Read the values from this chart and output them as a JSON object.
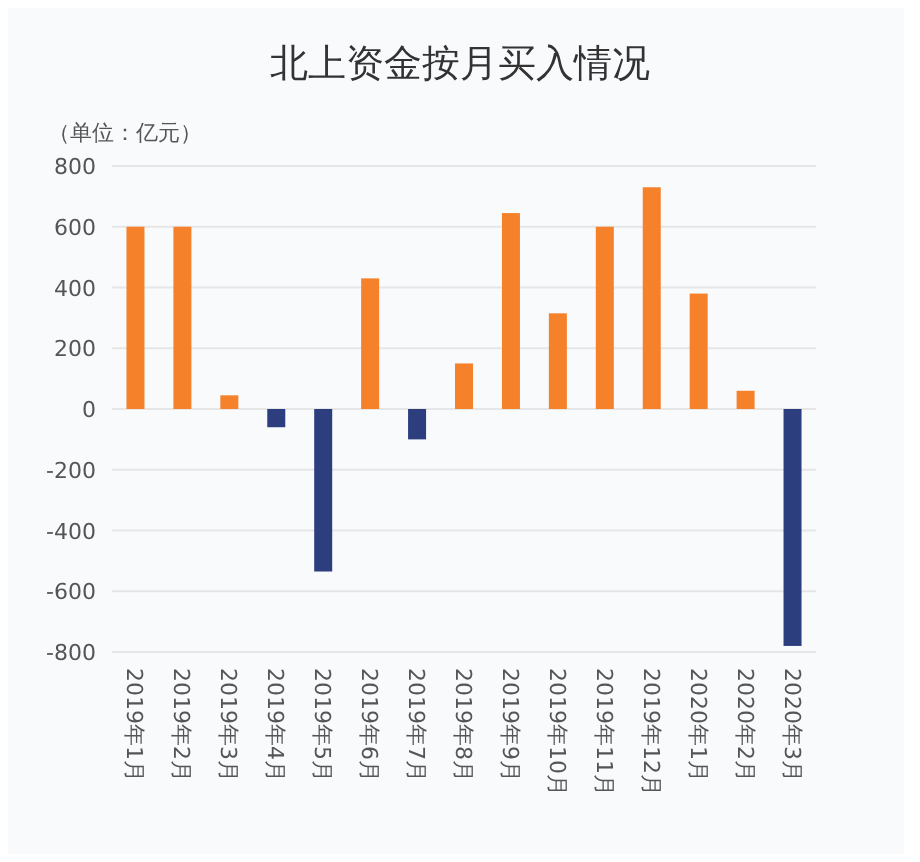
{
  "chart_data": {
    "type": "bar",
    "title": "北上资金按月买入情况",
    "ylabel": "（单位：亿元）",
    "categories": [
      "2019年1月",
      "2019年2月",
      "2019年3月",
      "2019年4月",
      "2019年5月",
      "2019年6月",
      "2019年7月",
      "2019年8月",
      "2019年9月",
      "2019年10月",
      "2019年11月",
      "2019年12月",
      "2020年1月",
      "2020年2月",
      "2020年3月"
    ],
    "values": [
      600,
      600,
      45,
      -60,
      -535,
      430,
      -100,
      150,
      645,
      315,
      600,
      730,
      380,
      60,
      -780
    ],
    "colors": [
      "#f5812a",
      "#f5812a",
      "#f5812a",
      "#2c3e7e",
      "#2c3e7e",
      "#f5812a",
      "#2c3e7e",
      "#f5812a",
      "#f5812a",
      "#f5812a",
      "#f5812a",
      "#f5812a",
      "#f5812a",
      "#f5812a",
      "#2c3e7e"
    ],
    "ylim": [
      -800,
      800
    ],
    "yticks": [
      -800,
      -600,
      -400,
      -200,
      0,
      200,
      400,
      600,
      800
    ],
    "grid": "y"
  }
}
